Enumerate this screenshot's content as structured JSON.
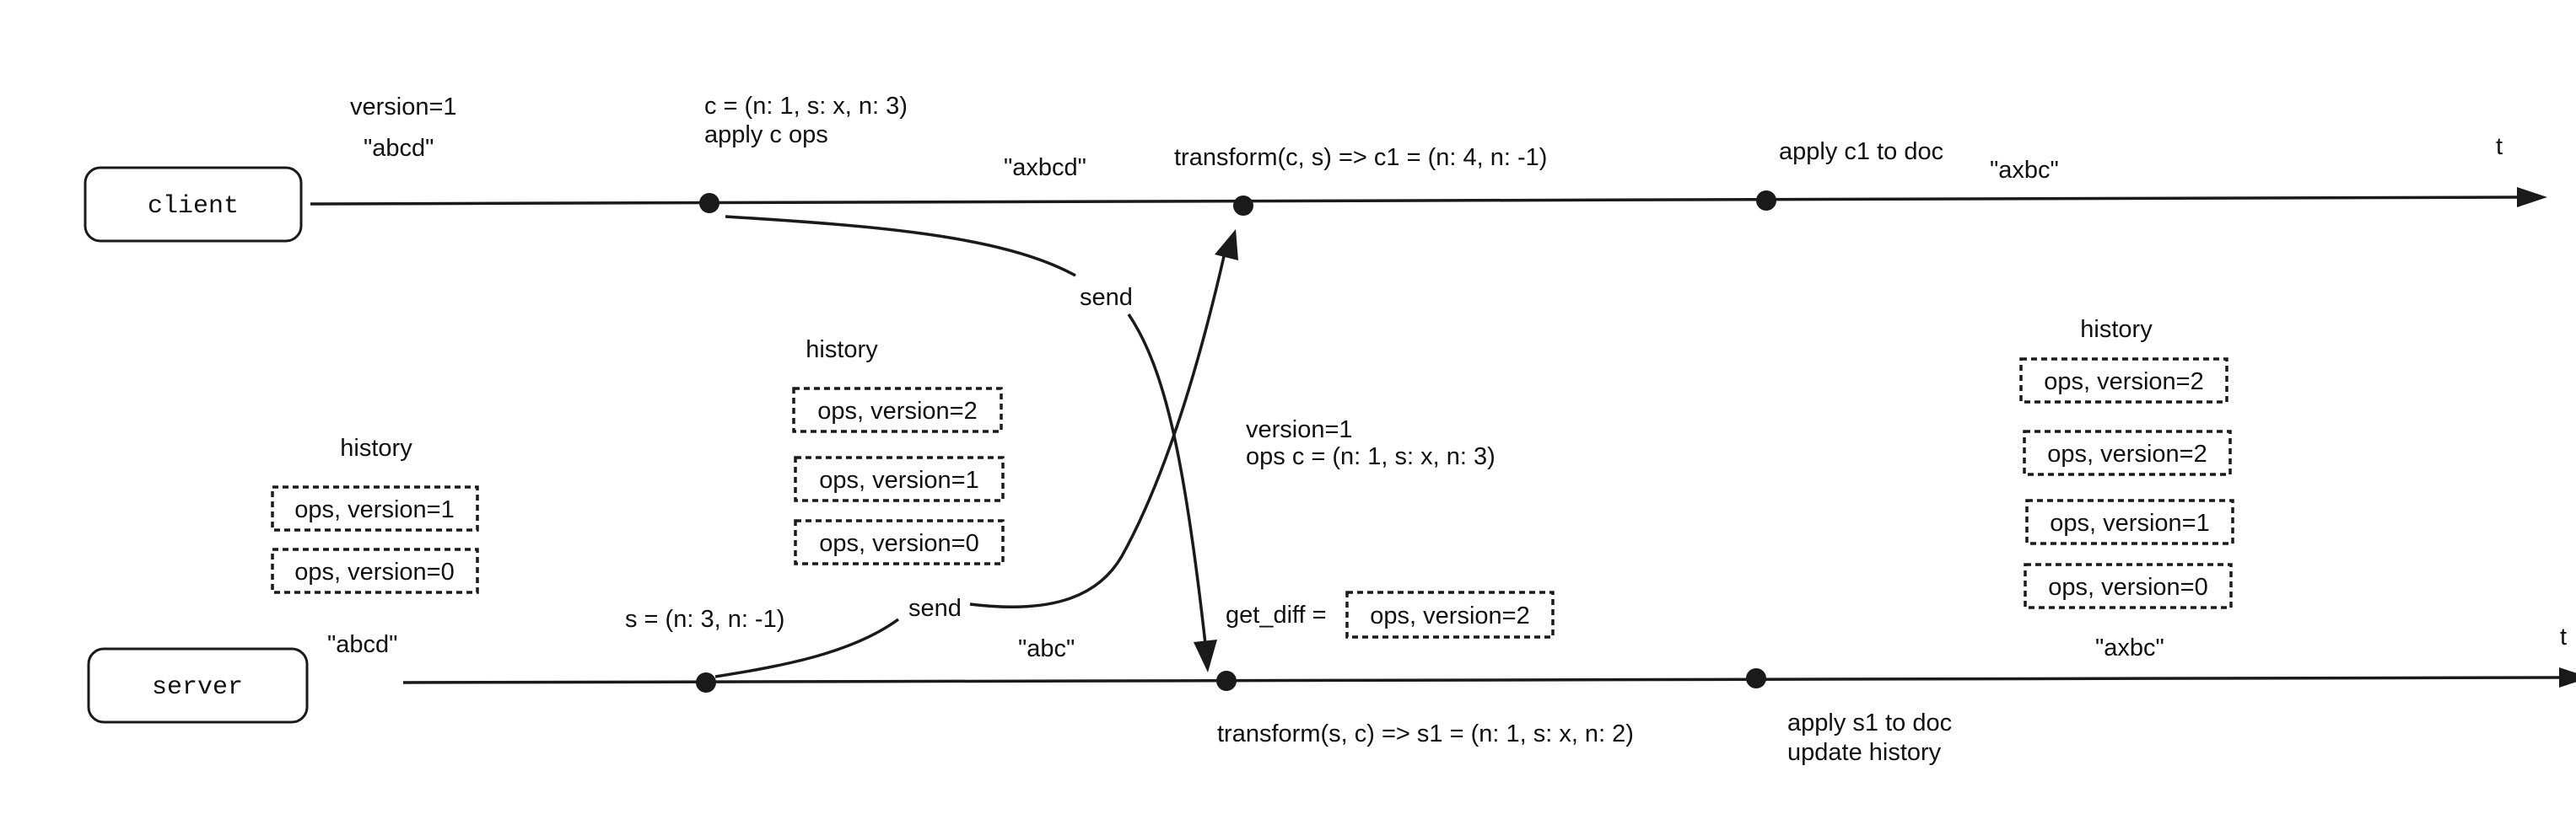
{
  "lanes": {
    "client_label": "client",
    "server_label": "server",
    "time_label": "t"
  },
  "client": {
    "version_label": "version=1",
    "doc_initial": "\"abcd\"",
    "op_def": "c = (n: 1, s: x, n: 3)",
    "op_apply": "apply c ops",
    "doc_after_c": "\"axbcd\"",
    "transform": "transform(c, s) => c1 = (n: 4, n: -1)",
    "apply_c1": "apply c1 to doc",
    "doc_final": "\"axbc\""
  },
  "server": {
    "doc_initial": "\"abcd\"",
    "op_def": "s = (n: 3, n: -1)",
    "doc_after_s": "\"abc\"",
    "get_diff_label": "get_diff =",
    "get_diff_value": "ops, version=2",
    "transform": "transform(s, c) => s1 = (n: 1, s: x, n: 2)",
    "apply_s1": "apply s1 to doc",
    "update_history": "update history",
    "doc_final": "\"axbc\""
  },
  "messages": {
    "client_send": "send",
    "server_send": "send",
    "payload_version": "version=1",
    "payload_ops": "ops c = (n: 1, s: x, n: 3)"
  },
  "history_stacks": [
    {
      "title": "history",
      "items": [
        "ops, version=1",
        "ops, version=0"
      ]
    },
    {
      "title": "history",
      "items": [
        "ops, version=2",
        "ops, version=1",
        "ops, version=0"
      ]
    },
    {
      "title": "history",
      "items": [
        "ops, version=2",
        "ops, version=2",
        "ops, version=1",
        "ops, version=0"
      ]
    }
  ],
  "colors": {
    "client_doc": "#1f5fbf",
    "server_doc": "#2f8f2f",
    "line": "#1a1a1a"
  }
}
